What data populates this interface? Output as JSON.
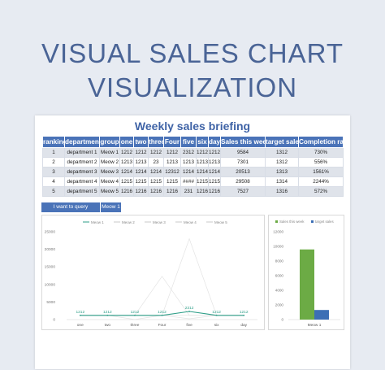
{
  "page": {
    "title_line1": "VISUAL SALES CHART",
    "title_line2": "VISUALIZATION"
  },
  "sheet": {
    "title": "Weekly sales briefing",
    "headers": [
      "ranking",
      "department",
      "group",
      "one",
      "two",
      "three",
      "Four",
      "five",
      "six",
      "day",
      "Sales this week",
      "target sales",
      "Completion rate"
    ],
    "rows": [
      [
        "1",
        "department 1",
        "Meow 1",
        "1212",
        "1212",
        "1212",
        "1212",
        "2312",
        "1212",
        "1212",
        "9584",
        "1312",
        "730%"
      ],
      [
        "2",
        "department 2",
        "Meow 2",
        "1213",
        "1213",
        "23",
        "1213",
        "1213",
        "1213",
        "1213",
        "7301",
        "1312",
        "556%"
      ],
      [
        "3",
        "department 3",
        "Meow 3",
        "1214",
        "1214",
        "1214",
        "12312",
        "1214",
        "1214",
        "1214",
        "20513",
        "1313",
        "1561%"
      ],
      [
        "4",
        "department 4",
        "Meow 4",
        "1215",
        "1215",
        "1215",
        "1215",
        "####",
        "1215",
        "1215",
        "29508",
        "1314",
        "2244%"
      ],
      [
        "5",
        "department 5",
        "Meow 5",
        "1216",
        "1216",
        "1216",
        "1216",
        "231",
        "1216",
        "1216",
        "7527",
        "1316",
        "572%"
      ]
    ],
    "query_label": "I want to query",
    "query_value": "Meow 1"
  },
  "chart_data": [
    {
      "type": "line",
      "title": "",
      "categories": [
        "one",
        "two",
        "three",
        "Four",
        "five",
        "six",
        "day"
      ],
      "ylim": [
        0,
        25000
      ],
      "yticks": [
        "0",
        "5000",
        "10000",
        "15000",
        "20000",
        "25000"
      ],
      "legend_position": "top",
      "highlight_series": "Meow 1",
      "series": [
        {
          "name": "Meow 1",
          "values": [
            1212,
            1212,
            1212,
            1212,
            2312,
            1212,
            1212
          ],
          "color": "#2e9e88",
          "labels": [
            "1212",
            "1212",
            "1212",
            "1212",
            "2312",
            "1212",
            "1212"
          ]
        },
        {
          "name": "Meow 2",
          "values": [
            1213,
            1213,
            23,
            1213,
            1213,
            1213,
            1213
          ],
          "color": "#e3e3e3"
        },
        {
          "name": "Meow 3",
          "values": [
            1214,
            1214,
            1214,
            12312,
            1214,
            1214,
            1214
          ],
          "color": "#e3e3e3"
        },
        {
          "name": "Meow 4",
          "values": [
            1215,
            1215,
            1215,
            1215,
            23000,
            1215,
            1215
          ],
          "color": "#e3e3e3"
        },
        {
          "name": "Meow 5",
          "values": [
            1216,
            1216,
            1216,
            1216,
            231,
            1216,
            1216
          ],
          "color": "#e3e3e3"
        }
      ]
    },
    {
      "type": "bar",
      "title": "",
      "categories": [
        "Meow 1"
      ],
      "ylim": [
        0,
        12000
      ],
      "yticks": [
        "0",
        "2000",
        "4000",
        "6000",
        "8000",
        "10000",
        "12000"
      ],
      "legend_position": "top",
      "series": [
        {
          "name": "Sales this week",
          "values": [
            9584
          ],
          "color": "#6cab45"
        },
        {
          "name": "target sales",
          "values": [
            1312
          ],
          "color": "#3c6fb5"
        }
      ]
    }
  ]
}
